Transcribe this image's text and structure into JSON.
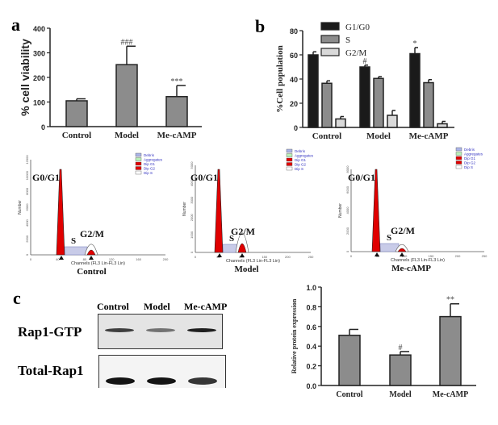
{
  "panel_labels": {
    "a": "a",
    "b": "b",
    "c": "c"
  },
  "chart_data": [
    {
      "id": "a",
      "type": "bar",
      "ylabel": "% cell viability",
      "categories": [
        "Control",
        "Model",
        "Me-cAMP"
      ],
      "values": [
        105,
        252,
        122
      ],
      "errors": [
        8,
        75,
        45
      ],
      "annotations": [
        "",
        "###",
        "***"
      ],
      "ylim": [
        0,
        400
      ],
      "yticks": [
        "0",
        "100",
        "200",
        "300",
        "400"
      ],
      "color": "#8c8c8c"
    },
    {
      "id": "b",
      "type": "bar",
      "ylabel": "%Cell population",
      "categories": [
        "Control",
        "Model",
        "Me-cAMP"
      ],
      "series": [
        {
          "name": "G1/G0",
          "values": [
            60,
            50,
            61
          ],
          "errors": [
            2.5,
            1.5,
            5
          ],
          "annotations": [
            "",
            "#",
            "*"
          ],
          "color": "#1a1a1a"
        },
        {
          "name": "S",
          "values": [
            36.5,
            40.5,
            37
          ],
          "errors": [
            2,
            1.5,
            2.5
          ],
          "annotations": [
            "",
            "",
            ""
          ],
          "color": "#8c8c8c"
        },
        {
          "name": "G2/M",
          "values": [
            7,
            10,
            3
          ],
          "errors": [
            2,
            4,
            2
          ],
          "annotations": [
            "",
            "",
            ""
          ],
          "color": "#d9d9d9"
        }
      ],
      "ylim": [
        0,
        80
      ],
      "yticks": [
        "0",
        "20",
        "40",
        "60",
        "80"
      ],
      "legend": "top"
    },
    {
      "id": "flow",
      "type": "histogram",
      "panels": [
        {
          "caption": "Control",
          "xticks": [
            "0",
            "40",
            "80",
            "120",
            "160",
            "200"
          ],
          "yticks": [
            "0",
            "2000",
            "4000",
            "6000",
            "8000",
            "10000",
            "12000"
          ]
        },
        {
          "caption": "Model",
          "xticks": [
            "0",
            "50",
            "100",
            "150",
            "200",
            "250"
          ],
          "yticks": [
            "0",
            "1000",
            "2000",
            "3000",
            "4000",
            "5000"
          ]
        },
        {
          "caption": "Me-cAMP",
          "xticks": [
            "0",
            "50",
            "100",
            "150",
            "200",
            "250"
          ],
          "yticks": [
            "0",
            "2000",
            "4000",
            "6000",
            "8000"
          ]
        }
      ],
      "peak_labels": {
        "g0g1": "G0/G1",
        "s": "S",
        "g2m": "G2/M"
      },
      "xlabel": "Channels (FL3 Lin-FL3 Lin)",
      "ylabel": "Number",
      "legend": [
        "Debris",
        "Aggregates",
        "Dip G1",
        "Dip G2",
        "Dip S"
      ],
      "legend_colors": [
        "#aab4e8",
        "#b8f0b8",
        "#e00000",
        "#e00000",
        "#ffffff"
      ],
      "peak_color": "#e00000"
    },
    {
      "id": "c",
      "type": "bar",
      "ylabel": "Relative protein expression",
      "categories": [
        "Control",
        "Model",
        "Me-cAMP"
      ],
      "values": [
        0.51,
        0.31,
        0.7
      ],
      "errors": [
        0.06,
        0.035,
        0.13
      ],
      "annotations": [
        "",
        "#",
        "**"
      ],
      "ylim": [
        0,
        1.0
      ],
      "yticks": [
        "0.0",
        "0.2",
        "0.4",
        "0.6",
        "0.8",
        "1.0"
      ],
      "color": "#8c8c8c"
    }
  ],
  "blot": {
    "lanes": [
      "Control",
      "Model",
      "Me-cAMP"
    ],
    "rows": [
      {
        "label": "Rap1-GTP",
        "intensity": [
          0.8,
          0.55,
          0.95
        ]
      },
      {
        "label": "Total-Rap1",
        "intensity": [
          1.0,
          1.0,
          0.85
        ]
      }
    ]
  }
}
